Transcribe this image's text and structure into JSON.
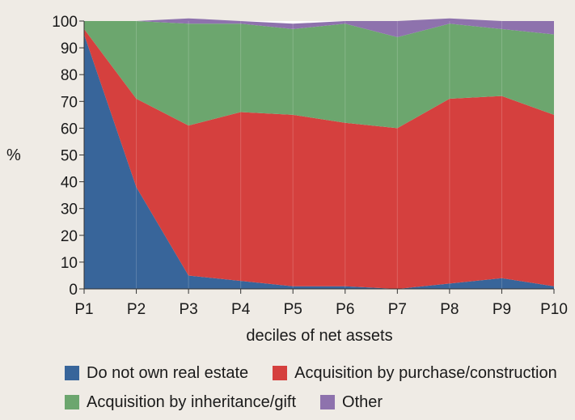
{
  "chart_data": {
    "type": "area",
    "stacked": true,
    "title": "",
    "xlabel": "deciles of net assets",
    "ylabel": "%",
    "x": [
      "P1",
      "P2",
      "P3",
      "P4",
      "P5",
      "P6",
      "P7",
      "P8",
      "P9",
      "P10"
    ],
    "ylim": [
      0,
      100
    ],
    "yticks": [
      0,
      10,
      20,
      30,
      40,
      50,
      60,
      70,
      80,
      90,
      100
    ],
    "grid": "vertical-lines-faint",
    "legend_position": "bottom",
    "series": [
      {
        "name": "Do not own real estate",
        "color": "#38659a",
        "values": [
          95,
          38,
          5,
          3,
          1,
          1,
          0,
          2,
          4,
          1
        ]
      },
      {
        "name": "Acquisition by purchase/construction",
        "color": "#d5403e",
        "values": [
          2,
          33,
          56,
          63,
          64,
          61,
          60,
          69,
          68,
          64
        ]
      },
      {
        "name": "Acquisition by inheritance/gift",
        "color": "#6ca66e",
        "values": [
          3,
          29,
          38,
          33,
          32,
          37,
          34,
          28,
          25,
          30
        ]
      },
      {
        "name": "Other",
        "color": "#8e72ad",
        "values": [
          0,
          0,
          2,
          1,
          2,
          1,
          6,
          2,
          3,
          5
        ]
      }
    ]
  }
}
